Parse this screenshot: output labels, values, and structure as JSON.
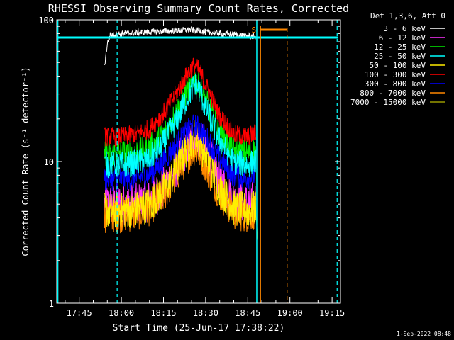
{
  "chart_data": {
    "type": "line",
    "title": "RHESSI Observing Summary Count Rates, Corrected",
    "xlabel": "Start Time (25-Jun-17 17:38:22)",
    "ylabel": "Corrected Count Rate (s⁻¹ detector⁻¹)",
    "yscale": "log",
    "ylim": [
      1,
      100
    ],
    "xlim_minutes_after_17_00": [
      37,
      138
    ],
    "x_tick_labels": [
      "17:45",
      "18:00",
      "18:15",
      "18:30",
      "18:45",
      "19:00",
      "19:15"
    ],
    "x_tick_minutes_after_17_00": [
      45,
      60,
      75,
      90,
      105,
      120,
      135
    ],
    "y_tick_labels": [
      "1",
      "10",
      "100"
    ],
    "y_tick_values": [
      1,
      10,
      100
    ],
    "legend_title": "Det 1,3,6, Att 0",
    "legend_placement": "right",
    "footer_date": "1-Sep-2022 08:48",
    "s_marker_label": "S",
    "series": [
      {
        "name": "3 - 6 keV",
        "color": "#ffffff",
        "x": [
          54,
          55,
          56,
          60,
          65,
          70,
          75,
          80,
          85,
          88,
          90,
          95,
          100,
          105,
          108
        ],
        "values": [
          47,
          68,
          78,
          80,
          81,
          82,
          83,
          84,
          85,
          84,
          82,
          80,
          79,
          77,
          76
        ]
      },
      {
        "name": "6 - 12 keV",
        "color": "#ff33ff",
        "x": [
          54,
          60,
          65,
          70,
          75,
          80,
          83,
          85,
          86,
          88,
          90,
          95,
          100,
          105,
          108
        ],
        "values": [
          5,
          5,
          5,
          5.3,
          6.5,
          9.5,
          12.5,
          14.5,
          15,
          14,
          12,
          7.5,
          5.3,
          5,
          5.3
        ]
      },
      {
        "name": "12 - 25 keV",
        "color": "#00ee00",
        "x": [
          54,
          60,
          65,
          70,
          75,
          80,
          83,
          85,
          86,
          88,
          90,
          95,
          100,
          105,
          108
        ],
        "values": [
          11.5,
          11.5,
          11.6,
          12.5,
          15.5,
          23,
          30,
          35,
          38,
          34,
          27,
          16,
          12,
          11.5,
          12
        ]
      },
      {
        "name": "25 - 50 keV",
        "color": "#00ffff",
        "x": [
          54,
          60,
          65,
          70,
          75,
          80,
          83,
          85,
          86,
          88,
          90,
          95,
          100,
          105,
          108
        ],
        "values": [
          9.5,
          9.5,
          9.7,
          10.5,
          13.5,
          20,
          27,
          32,
          35,
          31,
          24,
          14,
          10,
          9.5,
          10
        ]
      },
      {
        "name": "50 - 100 keV",
        "color": "#ffee00",
        "x": [
          54,
          60,
          65,
          70,
          75,
          80,
          83,
          85,
          86,
          88,
          90,
          95,
          100,
          105,
          108
        ],
        "values": [
          4.5,
          4.5,
          4.6,
          5,
          6.2,
          9,
          12,
          14,
          15,
          13.5,
          11,
          6.5,
          4.7,
          4.5,
          4.7
        ]
      },
      {
        "name": "100 - 300 keV",
        "color": "#ff0000",
        "x": [
          54,
          60,
          65,
          70,
          75,
          80,
          83,
          85,
          86,
          88,
          90,
          95,
          100,
          105,
          108
        ],
        "values": [
          15,
          15,
          15.5,
          17,
          22,
          31,
          40,
          46,
          48,
          43,
          35,
          21,
          15.5,
          15,
          16
        ]
      },
      {
        "name": "300 - 800 keV",
        "color": "#0000ff",
        "x": [
          54,
          60,
          65,
          70,
          75,
          80,
          83,
          85,
          86,
          88,
          90,
          95,
          100,
          105,
          108
        ],
        "values": [
          7.5,
          7.5,
          7.6,
          8.2,
          10,
          13.5,
          16,
          17.5,
          18,
          17,
          15,
          10.5,
          8,
          7.7,
          8
        ]
      },
      {
        "name": "800 - 7000 keV",
        "color": "#ff8800",
        "x": [
          54,
          60,
          65,
          70,
          75,
          80,
          83,
          85,
          86,
          88,
          90,
          95,
          100,
          105,
          108
        ],
        "values": [
          4.2,
          4.2,
          4.3,
          4.7,
          5.8,
          8.3,
          10.5,
          12,
          12.5,
          11.5,
          9.5,
          6,
          4.4,
          4.2,
          4.5
        ]
      },
      {
        "name": "7000 - 15000 keV",
        "color": "#999900",
        "x": [
          108,
          108.5
        ],
        "values": [
          4,
          2.8
        ]
      }
    ]
  }
}
